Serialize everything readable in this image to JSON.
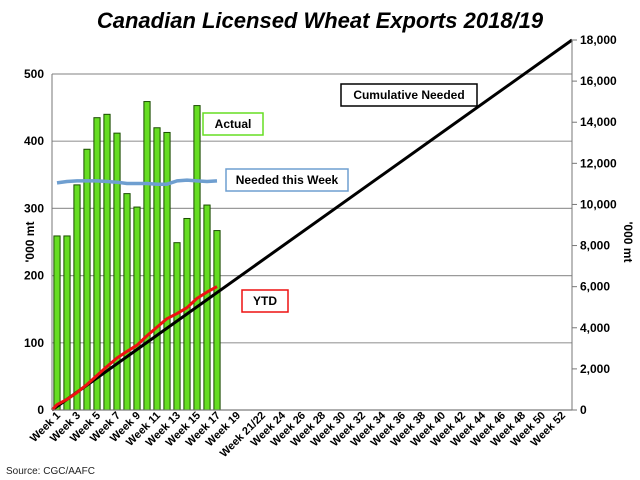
{
  "chart_data": {
    "type": "bar",
    "title": "Canadian Licensed Wheat Exports 2018/19",
    "source": "Source: CGC/AAFC",
    "y_left": {
      "label": "'000 mt",
      "lim": [
        0,
        500
      ],
      "ticks": [
        "0",
        "100",
        "200",
        "300",
        "400",
        "500"
      ]
    },
    "y_right": {
      "label": "'000 mt",
      "lim": [
        0,
        18000
      ],
      "ticks": [
        "0",
        "2,000",
        "4,000",
        "6,000",
        "8,000",
        "10,000",
        "12,000",
        "14,000",
        "16,000",
        "18,000"
      ]
    },
    "x_tick_labels": [
      "Week 1",
      "Week 3",
      "Week 5",
      "Week 7",
      "Week 9",
      "Week 11",
      "Week 13",
      "Week 15",
      "Week 17",
      "Week 19",
      "Week 21/22",
      "Week 24",
      "Week 26",
      "Week 28",
      "Week 30",
      "Week 32",
      "Week 34",
      "Week 36",
      "Week 38",
      "Week 40",
      "Week 42",
      "Week 44",
      "Week 46",
      "Week 48",
      "Week 50",
      "Week 52"
    ],
    "num_weeks": 52,
    "grid": true,
    "series": [
      {
        "name": "Actual",
        "type": "bar",
        "axis": "left",
        "color": "#66dd22",
        "values": [
          259,
          259,
          335,
          388,
          435,
          440,
          412,
          322,
          302,
          459,
          420,
          413,
          249,
          285,
          453,
          305,
          267
        ]
      },
      {
        "name": "Needed this Week",
        "type": "line",
        "axis": "left",
        "color": "#6f9fd0",
        "values": [
          338,
          340,
          341,
          341,
          341,
          340,
          339,
          337,
          337,
          337,
          336,
          336,
          341,
          342,
          341,
          340,
          341
        ]
      },
      {
        "name": "YTD",
        "type": "line",
        "axis": "right",
        "color": "#ee1111",
        "values": [
          259,
          518,
          853,
          1241,
          1676,
          2116,
          2528,
          2850,
          3152,
          3611,
          4031,
          4444,
          4693,
          4978,
          5431,
          5736,
          6003
        ]
      },
      {
        "name": "Cumulative Needed",
        "type": "line",
        "axis": "right",
        "color": "#000000",
        "start": 0,
        "end": 18000
      }
    ]
  }
}
